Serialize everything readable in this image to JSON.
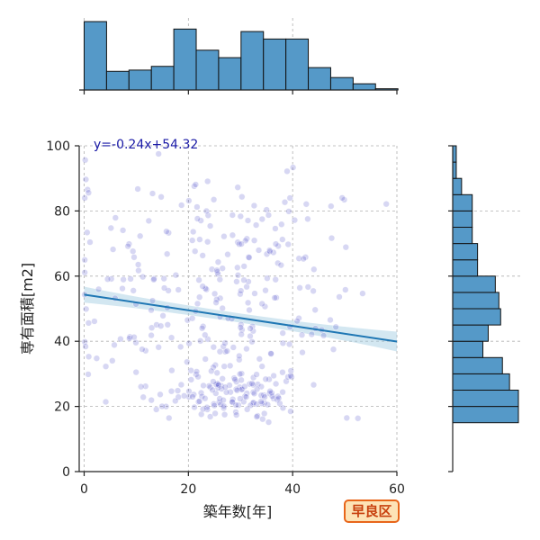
{
  "chart_data": {
    "type": "scatter",
    "xlabel": "築年数[年]",
    "ylabel": "専有面積[m2]",
    "xlim": [
      -1,
      60
    ],
    "ylim": [
      0,
      100
    ],
    "xticks": [
      "0",
      "20",
      "40",
      "60"
    ],
    "yticks": [
      "0",
      "20",
      "40",
      "60",
      "80",
      "100"
    ],
    "grid": true,
    "regression": {
      "label": "y=-0.24x+54.32",
      "slope": -0.24,
      "intercept": 54.32,
      "color": "#1f77b4",
      "ci_color": "#9ecae1"
    },
    "scatter_color": "#4a4ac8",
    "hist_color": "#5599c8",
    "x_histogram": {
      "bin_edges": [
        0,
        4.3,
        8.6,
        12.9,
        17.2,
        21.5,
        25.8,
        30.1,
        34.4,
        38.7,
        43.0,
        47.3,
        51.6,
        55.9,
        60.2
      ],
      "heights": [
        55,
        15,
        16,
        19,
        49,
        32,
        26,
        47,
        41,
        41,
        18,
        10,
        5,
        1
      ]
    },
    "y_histogram": {
      "bin_edges": [
        15,
        20,
        25,
        30,
        35,
        40,
        45,
        50,
        55,
        60,
        65,
        70,
        75,
        80,
        85,
        90,
        95,
        100
      ],
      "heights": [
        37,
        37,
        32,
        28,
        17,
        20,
        27,
        26,
        24,
        14,
        14,
        11,
        11,
        11,
        5,
        2,
        2
      ]
    }
  },
  "badge_label": "早良区"
}
